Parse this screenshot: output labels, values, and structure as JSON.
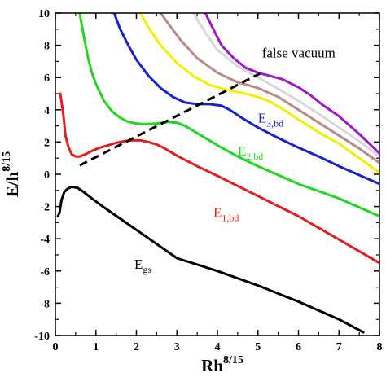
{
  "chart_data": {
    "type": "line",
    "xlabel": "Rh",
    "xlabel_sup": "8/15",
    "ylabel": "E/h",
    "ylabel_sup": "8/15",
    "xlim": [
      0,
      8
    ],
    "ylim": [
      -10,
      10
    ],
    "xticks": [
      0,
      1,
      2,
      3,
      4,
      5,
      6,
      7,
      8
    ],
    "yticks": [
      -10,
      -8,
      -6,
      -4,
      -2,
      0,
      2,
      4,
      6,
      8,
      10
    ],
    "grid": false,
    "series": [
      {
        "name": "E",
        "sub": "gs",
        "color": "#000000",
        "x": [
          0.06,
          0.1,
          0.15,
          0.22,
          0.3,
          0.38,
          0.45,
          0.55,
          0.7,
          0.9,
          1.2,
          1.6,
          2.0,
          3.0,
          4.0,
          5.0,
          6.0,
          7.0,
          7.6
        ],
        "y": [
          -2.6,
          -2.4,
          -1.6,
          -1.1,
          -0.9,
          -0.8,
          -0.8,
          -0.85,
          -1.1,
          -1.5,
          -2.05,
          -2.75,
          -3.45,
          -5.2,
          -6.0,
          -6.9,
          -7.9,
          -9.0,
          -9.8
        ]
      },
      {
        "name": "E",
        "sub": "1,bd",
        "color": "#e0201c",
        "x": [
          0.12,
          0.15,
          0.2,
          0.25,
          0.32,
          0.4,
          0.5,
          0.6,
          0.75,
          0.9,
          1.1,
          1.3,
          1.5,
          1.7,
          1.9,
          2.1,
          2.3,
          2.5,
          2.7,
          3.0,
          3.5,
          4.0,
          5.0,
          6.0,
          7.0,
          8.0
        ],
        "y": [
          5.0,
          4.5,
          3.6,
          2.4,
          1.7,
          1.25,
          1.1,
          1.1,
          1.25,
          1.45,
          1.65,
          1.8,
          1.95,
          2.05,
          2.1,
          2.1,
          2.0,
          1.85,
          1.6,
          1.15,
          0.5,
          -0.1,
          -1.35,
          -2.6,
          -4.05,
          -5.5
        ]
      },
      {
        "name": "E",
        "sub": "2,bd",
        "color": "#22d522",
        "x": [
          0.6,
          0.7,
          0.8,
          0.9,
          1.0,
          1.2,
          1.4,
          1.6,
          1.8,
          2.0,
          2.2,
          2.5,
          2.8,
          3.0,
          3.2,
          3.4,
          3.7,
          4.0,
          4.5,
          5.0,
          6.0,
          7.0,
          8.0
        ],
        "y": [
          10.0,
          8.6,
          7.3,
          6.3,
          5.6,
          4.55,
          3.9,
          3.5,
          3.25,
          3.15,
          3.1,
          3.15,
          3.25,
          3.2,
          3.0,
          2.7,
          2.25,
          1.8,
          1.1,
          0.5,
          -0.6,
          -1.5,
          -2.6
        ]
      },
      {
        "name": "E",
        "sub": "3,bd",
        "color": "#1c22c8",
        "x": [
          1.45,
          1.6,
          1.8,
          2.0,
          2.3,
          2.6,
          2.9,
          3.2,
          3.5,
          3.8,
          4.1,
          4.3,
          4.6,
          5.0,
          5.5,
          6.0,
          6.5,
          7.0,
          7.5,
          8.0
        ],
        "y": [
          10.0,
          9.0,
          8.0,
          7.1,
          6.1,
          5.35,
          4.8,
          4.45,
          4.35,
          4.35,
          4.25,
          4.0,
          3.5,
          2.9,
          2.25,
          1.65,
          1.1,
          0.5,
          -0.05,
          -0.6
        ]
      },
      {
        "name": "",
        "sub": "",
        "color": "#f0f000",
        "x": [
          2.1,
          2.3,
          2.6,
          3.0,
          3.4,
          3.8,
          4.2,
          4.6,
          5.0,
          5.3,
          5.7,
          6.0,
          6.5,
          7.0,
          7.5,
          8.0
        ],
        "y": [
          10.0,
          9.1,
          8.0,
          6.9,
          6.1,
          5.55,
          5.25,
          5.05,
          4.8,
          4.5,
          3.9,
          3.4,
          2.6,
          1.9,
          1.0,
          0.1
        ]
      },
      {
        "name": "",
        "sub": "",
        "color": "#b88a88",
        "x": [
          2.6,
          2.8,
          3.1,
          3.5,
          4.0,
          4.5,
          5.0,
          5.5,
          6.0,
          6.5,
          7.0,
          7.5,
          8.0
        ],
        "y": [
          10.0,
          9.3,
          8.3,
          7.2,
          6.3,
          5.7,
          5.35,
          4.8,
          4.0,
          3.2,
          2.4,
          1.6,
          0.7
        ]
      },
      {
        "name": "",
        "sub": "",
        "color": "#d8d8d8",
        "x": [
          3.4,
          3.7,
          4.0,
          4.5,
          5.0,
          5.5,
          6.0,
          6.5,
          7.0,
          7.5,
          8.0
        ],
        "y": [
          10.0,
          8.8,
          7.7,
          6.7,
          6.0,
          5.3,
          4.55,
          3.75,
          2.9,
          2.05,
          1.1
        ]
      },
      {
        "name": "",
        "sub": "",
        "color": "#9a1ac8",
        "x": [
          3.7,
          3.9,
          4.1,
          4.4,
          4.7,
          5.0,
          5.3,
          5.6,
          6.0,
          6.3,
          6.6,
          7.0,
          7.5,
          8.0
        ],
        "y": [
          10.0,
          9.0,
          8.0,
          7.2,
          6.6,
          6.3,
          6.1,
          5.9,
          5.4,
          4.9,
          4.3,
          3.6,
          2.5,
          1.3
        ]
      }
    ],
    "dashed_line": {
      "color": "#000000",
      "x": [
        0.6,
        5.05
      ],
      "y": [
        0.55,
        6.25
      ]
    },
    "annotations": [
      {
        "text": "false vacuum",
        "sub": "",
        "color": "#000000",
        "x": 5.1,
        "y": 7.25
      },
      {
        "text": "E",
        "sub": "3,bd",
        "color": "#1c22c8",
        "x": 5.0,
        "y": 3.2
      },
      {
        "text": "E",
        "sub": "2,bd",
        "color": "#22d522",
        "x": 4.5,
        "y": 1.15
      },
      {
        "text": "E",
        "sub": "1,bd",
        "color": "#e0201c",
        "x": 3.9,
        "y": -2.65
      },
      {
        "text": "E",
        "sub": "gs",
        "color": "#000000",
        "x": 1.95,
        "y": -5.85
      }
    ]
  }
}
